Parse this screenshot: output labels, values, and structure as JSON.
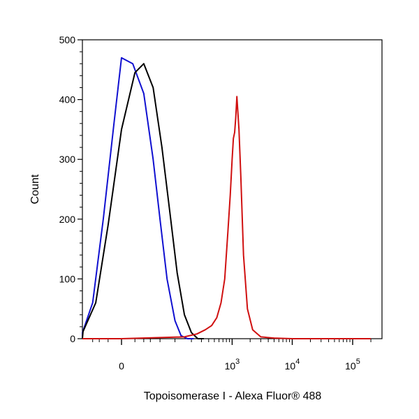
{
  "chart_data": {
    "type": "line",
    "title": "",
    "xlabel": "Topoisomerase I - Alexa Fluor® 488",
    "ylabel": "Count",
    "x_scale": "biexponential",
    "ylim": [
      0,
      500
    ],
    "y_ticks": [
      {
        "value": 0,
        "label": "0"
      },
      {
        "value": 100,
        "label": "100"
      },
      {
        "value": 200,
        "label": "200"
      },
      {
        "value": 300,
        "label": "300"
      },
      {
        "value": 400,
        "label": "400"
      },
      {
        "value": 500,
        "label": "500"
      }
    ],
    "x_ticks": [
      {
        "value": 0,
        "base": "0",
        "exp": ""
      },
      {
        "value": 1000,
        "base": "10",
        "exp": "3"
      },
      {
        "value": 10000,
        "base": "10",
        "exp": "4"
      },
      {
        "value": 100000,
        "base": "10",
        "exp": "5"
      }
    ],
    "grid": false,
    "legend": "none",
    "series": [
      {
        "color": "#1010d0",
        "x": [
          -150,
          -60,
          -30,
          -15,
          -5,
          0,
          8,
          20,
          35,
          50,
          70,
          100,
          130,
          170,
          220
        ],
        "y": [
          0,
          10,
          60,
          200,
          360,
          470,
          460,
          410,
          300,
          200,
          100,
          30,
          5,
          0,
          0
        ]
      },
      {
        "color": "#000000",
        "x": [
          -130,
          -50,
          -25,
          -10,
          0,
          10,
          20,
          35,
          55,
          80,
          110,
          150,
          200,
          260,
          330
        ],
        "y": [
          0,
          12,
          60,
          190,
          350,
          445,
          460,
          420,
          320,
          210,
          110,
          40,
          10,
          0,
          0
        ]
      },
      {
        "color": "#d01010",
        "x": [
          -300,
          0,
          150,
          250,
          350,
          450,
          550,
          650,
          750,
          850,
          930,
          1000,
          1050,
          1100,
          1150,
          1200,
          1300,
          1400,
          1550,
          1800,
          2200,
          3000,
          5000,
          10000,
          200000
        ],
        "y": [
          0,
          0,
          3,
          8,
          15,
          22,
          35,
          60,
          100,
          180,
          240,
          300,
          335,
          345,
          370,
          405,
          350,
          270,
          140,
          50,
          15,
          3,
          1,
          0,
          0
        ]
      }
    ]
  }
}
